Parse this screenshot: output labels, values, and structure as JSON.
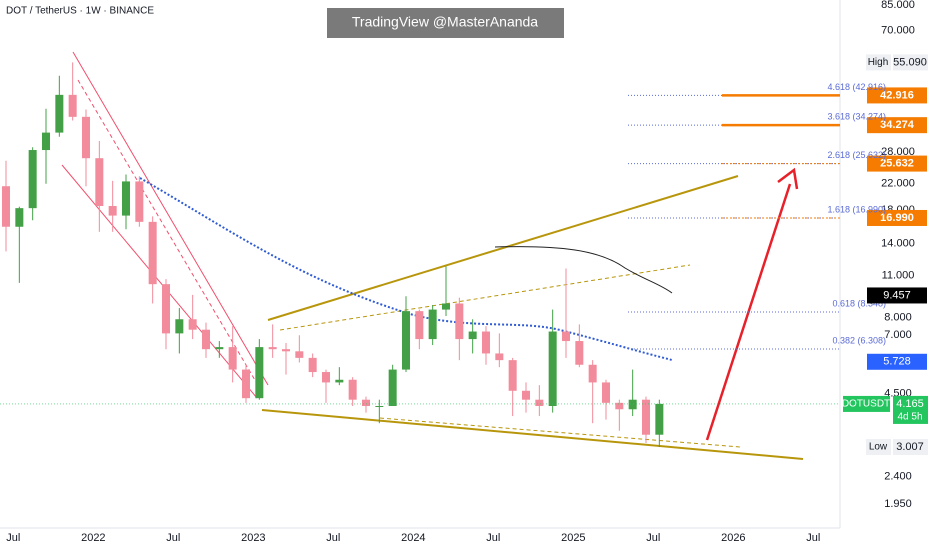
{
  "chart_data": {
    "type": "candlestick",
    "title": "DOT / TetherUS · 1W · BINANCE",
    "watermark": "TradingView @MasterAnanda",
    "log_scale": true,
    "grid": false,
    "up_color": "#43a047",
    "down_color": "#f28b9b",
    "x": [
      "2021-06",
      "2021-07",
      "2021-08",
      "2021-09",
      "2021-10",
      "2021-11",
      "2021-12",
      "2022-01",
      "2022-02",
      "2022-03",
      "2022-04",
      "2022-05",
      "2022-06",
      "2022-07",
      "2022-08",
      "2022-09",
      "2022-10",
      "2022-11",
      "2022-12",
      "2023-01",
      "2023-02",
      "2023-03",
      "2023-04",
      "2023-05",
      "2023-06",
      "2023-07",
      "2023-08",
      "2023-09",
      "2023-10",
      "2023-11",
      "2023-12",
      "2024-01",
      "2024-02",
      "2024-03",
      "2024-04",
      "2024-05",
      "2024-06",
      "2024-07",
      "2024-08",
      "2024-09",
      "2024-10",
      "2024-11",
      "2024-12",
      "2025-01",
      "2025-02",
      "2025-03",
      "2025-04",
      "2025-05",
      "2025-06",
      "2025-07"
    ],
    "open": [
      21.6,
      15.9,
      18.3,
      28.4,
      32.4,
      43.1,
      36.5,
      26.7,
      18.6,
      17.3,
      22.4,
      16.5,
      10.3,
      7.1,
      7.9,
      7.3,
      6.3,
      6.4,
      5.4,
      4.35,
      6.4,
      6.3,
      6.2,
      5.9,
      5.3,
      4.9,
      5.0,
      4.3,
      4.1,
      4.1,
      5.4,
      8.4,
      6.8,
      8.5,
      8.9,
      6.8,
      7.2,
      6.1,
      5.8,
      4.6,
      4.3,
      4.1,
      7.2,
      6.7,
      5.6,
      4.9,
      4.2,
      4.0,
      4.3,
      3.3
    ],
    "high": [
      26.2,
      18.5,
      29.0,
      38.8,
      49.8,
      55.09,
      38.6,
      30.4,
      22.5,
      23.6,
      23.3,
      17.2,
      10.7,
      8.6,
      9.5,
      7.7,
      6.7,
      7.5,
      5.6,
      6.8,
      7.6,
      6.6,
      7.0,
      6.1,
      5.4,
      5.5,
      5.1,
      4.4,
      4.3,
      5.6,
      9.4,
      8.5,
      8.8,
      11.8,
      9.3,
      7.9,
      7.5,
      7.1,
      5.9,
      4.9,
      4.8,
      8.5,
      11.6,
      7.6,
      5.8,
      5.0,
      4.3,
      5.4,
      4.4,
      4.3
    ],
    "low": [
      13.2,
      10.4,
      16.7,
      22.0,
      31.4,
      35.5,
      21.6,
      15.3,
      15.3,
      15.6,
      15.9,
      8.9,
      6.3,
      6.1,
      6.8,
      5.9,
      5.9,
      4.9,
      4.2,
      4.3,
      5.9,
      5.2,
      5.7,
      5.1,
      4.2,
      4.8,
      4.1,
      3.9,
      3.6,
      4.1,
      5.3,
      6.3,
      6.5,
      8.1,
      5.8,
      6.1,
      5.6,
      5.5,
      3.8,
      3.9,
      3.8,
      3.9,
      5.9,
      5.5,
      3.6,
      3.7,
      3.4,
      3.8,
      3.1,
      3.007
    ],
    "close": [
      15.9,
      18.3,
      28.4,
      32.4,
      43.1,
      36.5,
      26.7,
      18.6,
      17.3,
      22.4,
      16.5,
      10.3,
      7.1,
      7.9,
      7.3,
      6.3,
      6.4,
      5.4,
      4.35,
      6.4,
      6.3,
      6.2,
      5.9,
      5.3,
      4.9,
      5.0,
      4.3,
      4.1,
      4.1,
      5.4,
      8.4,
      6.8,
      8.5,
      8.9,
      6.8,
      7.2,
      6.1,
      5.8,
      4.6,
      4.3,
      4.1,
      7.2,
      6.7,
      5.6,
      4.9,
      4.2,
      4.0,
      4.3,
      3.3,
      4.165
    ],
    "xlim": [
      "2021-06",
      "2026-09"
    ],
    "xticks": [
      {
        "value": "2021-07",
        "label": "Jul"
      },
      {
        "value": "2022-01",
        "label": "2022"
      },
      {
        "value": "2022-07",
        "label": "Jul"
      },
      {
        "value": "2023-01",
        "label": "2023"
      },
      {
        "value": "2023-07",
        "label": "Jul"
      },
      {
        "value": "2024-01",
        "label": "2024"
      },
      {
        "value": "2024-07",
        "label": "Jul"
      },
      {
        "value": "2025-01",
        "label": "2025"
      },
      {
        "value": "2025-07",
        "label": "Jul"
      },
      {
        "value": "2026-01",
        "label": "2026"
      },
      {
        "value": "2026-07",
        "label": "Jul"
      }
    ],
    "ylim": [
      1.63,
      88.3
    ],
    "yticks": [
      {
        "value": 85,
        "label": "85.000"
      },
      {
        "value": 70,
        "label": "70.000"
      },
      {
        "value": 28,
        "label": "28.000"
      },
      {
        "value": 22,
        "label": "22.000"
      },
      {
        "value": 18,
        "label": "18.000"
      },
      {
        "value": 14,
        "label": "14.000"
      },
      {
        "value": 11,
        "label": "11.000"
      },
      {
        "value": 8,
        "label": "8.000"
      },
      {
        "value": 7,
        "label": "7.000"
      },
      {
        "value": 4.5,
        "label": "4.500"
      },
      {
        "value": 2.4,
        "label": "2.400"
      },
      {
        "value": 1.95,
        "label": "1.950"
      }
    ],
    "levels": [
      {
        "name": "4.618 (42.916)",
        "value": 42.916,
        "value_label": "42.916",
        "color": "#f57c00",
        "style": "solid"
      },
      {
        "name": "3.618 (34.274)",
        "value": 34.274,
        "value_label": "34.274",
        "color": "#f57c00",
        "style": "solid"
      },
      {
        "name": "2.618 (25.632)",
        "value": 25.632,
        "value_label": "25.632",
        "color": "#f57c00",
        "style": "dotted"
      },
      {
        "name": "1.618 (16.990)",
        "value": 16.99,
        "value_label": "16.990",
        "color": "#f57c00",
        "style": "dotted"
      },
      {
        "name": "0.618 (8.348)",
        "value": 8.348,
        "color": "#5b6bd6",
        "style": "dotted"
      },
      {
        "name": "0.382 (6.308)",
        "value": 6.308,
        "color": "#5b6bd6",
        "style": "dotted"
      }
    ],
    "tags": [
      {
        "name": "High",
        "value": 55.09,
        "value_label": "55.090",
        "color": "#eef0f3"
      },
      {
        "value": 9.457,
        "value_label": "9.457",
        "color": "#000000"
      },
      {
        "value": 5.728,
        "value_label": "5.728",
        "color": "#2962ff"
      },
      {
        "name": "DOTUSDT",
        "value": 4.165,
        "value_label": "4.165",
        "countdown": "4d 5h",
        "color": "#22c55e"
      },
      {
        "name": "Low",
        "value": 3.007,
        "value_label": "3.007",
        "color": "#eef0f3"
      }
    ]
  }
}
